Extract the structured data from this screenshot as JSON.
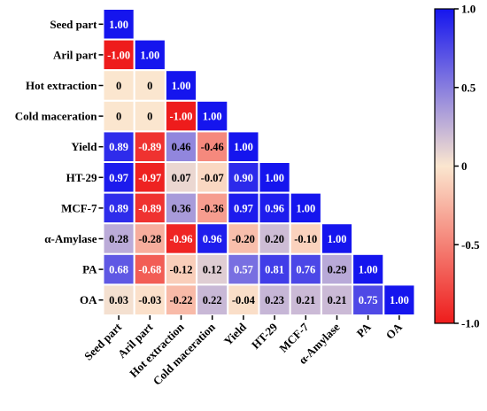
{
  "chart_data": {
    "type": "heatmap",
    "variables": [
      "Seed part",
      "Aril part",
      "Hot extraction",
      "Cold maceration",
      "Yield",
      "HT-29",
      "MCF-7",
      "α-Amylase",
      "PA",
      "OA"
    ],
    "matrix_lower": [
      [
        "1.00"
      ],
      [
        "-1.00",
        "1.00"
      ],
      [
        "0",
        "0",
        "1.00"
      ],
      [
        "0",
        "0",
        "-1.00",
        "1.00"
      ],
      [
        "0.89",
        "-0.89",
        "0.46",
        "-0.46",
        "1.00"
      ],
      [
        "0.97",
        "-0.97",
        "0.07",
        "-0.07",
        "0.90",
        "1.00"
      ],
      [
        "0.89",
        "-0.89",
        "0.36",
        "-0.36",
        "0.97",
        "0.96",
        "1.00"
      ],
      [
        "0.28",
        "-0.28",
        "-0.96",
        "0.96",
        "-0.20",
        "0.20",
        "-0.10",
        "1.00"
      ],
      [
        "0.68",
        "-0.68",
        "-0.12",
        "0.12",
        "0.57",
        "0.81",
        "0.76",
        "0.29",
        "1.00"
      ],
      [
        "0.03",
        "-0.03",
        "-0.22",
        "0.22",
        "-0.04",
        "0.23",
        "0.21",
        "0.21",
        "0.75",
        "1.00"
      ]
    ],
    "colorbar": {
      "min": -1.0,
      "max": 1.0,
      "ticks": [
        "1.0",
        "0.5",
        "0",
        "-0.5",
        "-1.0"
      ],
      "colors": {
        "negative": "#ee1c1c",
        "zero": "#fbe6cf",
        "positive": "#1515ee"
      }
    }
  }
}
